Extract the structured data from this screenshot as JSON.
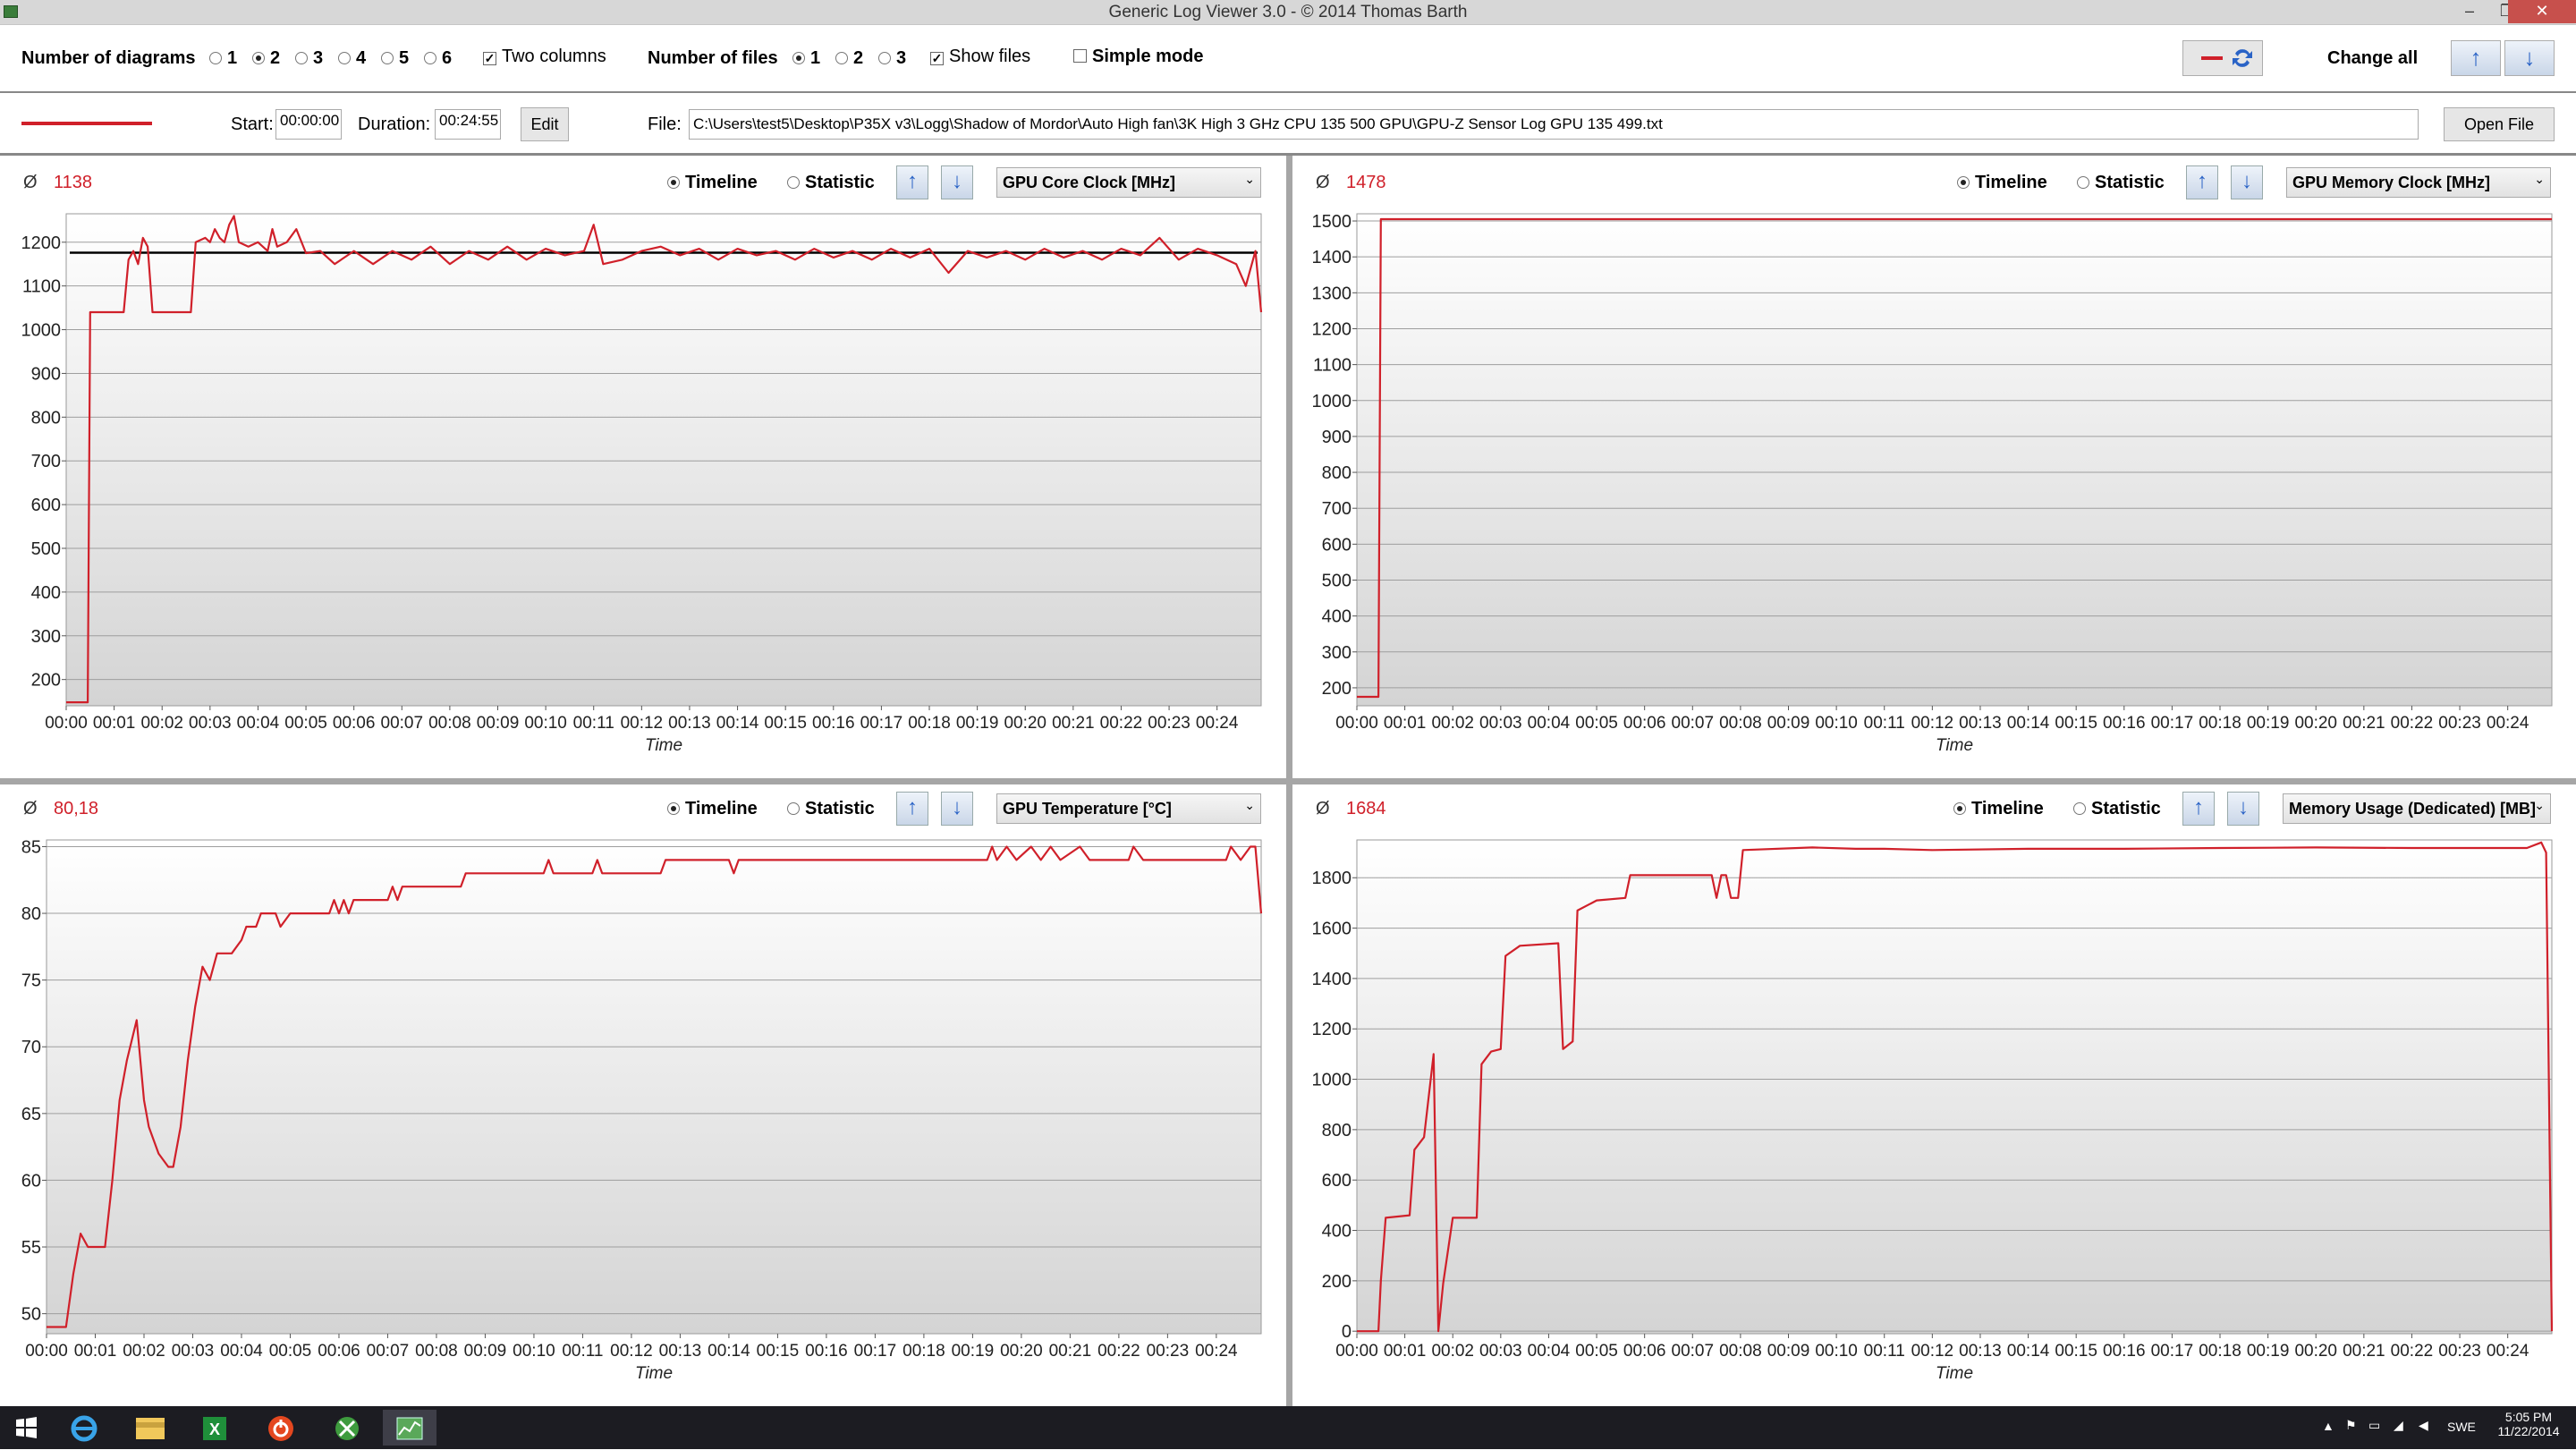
{
  "window": {
    "title": "Generic Log Viewer 3.0 - © 2014 Thomas Barth"
  },
  "toolbar": {
    "num_diagrams_label": "Number of diagrams",
    "diagram_options": [
      "1",
      "2",
      "3",
      "4",
      "5",
      "6"
    ],
    "diagram_selected": "2",
    "two_columns_label": "Two columns",
    "two_columns_checked": true,
    "num_files_label": "Number of files",
    "file_options": [
      "1",
      "2",
      "3"
    ],
    "file_selected": "1",
    "show_files_label": "Show files",
    "show_files_checked": true,
    "simple_mode_label": "Simple mode",
    "simple_mode_checked": false,
    "change_all_label": "Change all"
  },
  "file_row": {
    "line_color": "#d0202a",
    "start_label": "Start:",
    "start_value": "00:00:00",
    "duration_label": "Duration:",
    "duration_value": "00:24:55",
    "edit_label": "Edit",
    "file_label": "File:",
    "file_path": "C:\\Users\\test5\\Desktop\\P35X v3\\Logg\\Shadow of Mordor\\Auto High fan\\3K High 3 GHz CPU 135 500 GPU\\GPU-Z Sensor Log GPU 135 499.txt",
    "open_file_label": "Open File"
  },
  "common": {
    "avg_symbol": "Ø",
    "timeline_label": "Timeline",
    "statistic_label": "Statistic",
    "xlabel": "Time",
    "x_ticks": [
      "00:00",
      "00:01",
      "00:02",
      "00:03",
      "00:04",
      "00:05",
      "00:06",
      "00:07",
      "00:08",
      "00:09",
      "00:10",
      "00:11",
      "00:12",
      "00:13",
      "00:14",
      "00:15",
      "00:16",
      "00:17",
      "00:18",
      "00:19",
      "00:20",
      "00:21",
      "00:22",
      "00:23",
      "00:24"
    ]
  },
  "panels": [
    {
      "avg": "1138",
      "sensor": "GPU Core Clock [MHz]"
    },
    {
      "avg": "1478",
      "sensor": "GPU Memory Clock [MHz]"
    },
    {
      "avg": "80,18",
      "sensor": "GPU Temperature [°C]"
    },
    {
      "avg": "1684",
      "sensor": "Memory Usage (Dedicated) [MB]"
    }
  ],
  "chart_data": [
    {
      "type": "line",
      "title": "",
      "xlabel": "Time",
      "ylabel": "",
      "x_unit": "minutes",
      "xlim": [
        0,
        24.92
      ],
      "ylim": [
        140,
        1265
      ],
      "y_ticks": [
        200,
        300,
        400,
        500,
        600,
        700,
        800,
        900,
        1000,
        1100,
        1200
      ],
      "reference_line": 1176,
      "series": [
        {
          "color": "#d0202a",
          "points": [
            [
              0,
              148
            ],
            [
              0.45,
              148
            ],
            [
              0.5,
              1040
            ],
            [
              1.2,
              1040
            ],
            [
              1.3,
              1160
            ],
            [
              1.4,
              1180
            ],
            [
              1.5,
              1150
            ],
            [
              1.6,
              1210
            ],
            [
              1.7,
              1190
            ],
            [
              1.8,
              1040
            ],
            [
              2.6,
              1040
            ],
            [
              2.7,
              1200
            ],
            [
              2.9,
              1210
            ],
            [
              3.0,
              1200
            ],
            [
              3.1,
              1230
            ],
            [
              3.2,
              1210
            ],
            [
              3.3,
              1200
            ],
            [
              3.4,
              1240
            ],
            [
              3.5,
              1260
            ],
            [
              3.6,
              1200
            ],
            [
              3.8,
              1190
            ],
            [
              4.0,
              1200
            ],
            [
              4.2,
              1180
            ],
            [
              4.3,
              1230
            ],
            [
              4.4,
              1190
            ],
            [
              4.6,
              1200
            ],
            [
              4.8,
              1230
            ],
            [
              5.0,
              1175
            ],
            [
              5.3,
              1180
            ],
            [
              5.6,
              1150
            ],
            [
              6.0,
              1180
            ],
            [
              6.4,
              1150
            ],
            [
              6.8,
              1180
            ],
            [
              7.2,
              1160
            ],
            [
              7.6,
              1190
            ],
            [
              8.0,
              1150
            ],
            [
              8.4,
              1180
            ],
            [
              8.8,
              1160
            ],
            [
              9.2,
              1190
            ],
            [
              9.6,
              1160
            ],
            [
              10.0,
              1185
            ],
            [
              10.4,
              1170
            ],
            [
              10.8,
              1180
            ],
            [
              11.0,
              1240
            ],
            [
              11.2,
              1150
            ],
            [
              11.6,
              1160
            ],
            [
              12.0,
              1180
            ],
            [
              12.4,
              1190
            ],
            [
              12.8,
              1170
            ],
            [
              13.2,
              1185
            ],
            [
              13.6,
              1160
            ],
            [
              14.0,
              1185
            ],
            [
              14.4,
              1170
            ],
            [
              14.8,
              1180
            ],
            [
              15.2,
              1160
            ],
            [
              15.6,
              1185
            ],
            [
              16.0,
              1165
            ],
            [
              16.4,
              1180
            ],
            [
              16.8,
              1160
            ],
            [
              17.2,
              1185
            ],
            [
              17.6,
              1165
            ],
            [
              18.0,
              1185
            ],
            [
              18.4,
              1130
            ],
            [
              18.8,
              1180
            ],
            [
              19.2,
              1165
            ],
            [
              19.6,
              1180
            ],
            [
              20.0,
              1160
            ],
            [
              20.4,
              1185
            ],
            [
              20.8,
              1165
            ],
            [
              21.2,
              1180
            ],
            [
              21.6,
              1160
            ],
            [
              22.0,
              1185
            ],
            [
              22.4,
              1170
            ],
            [
              22.8,
              1210
            ],
            [
              23.2,
              1160
            ],
            [
              23.6,
              1185
            ],
            [
              24.0,
              1170
            ],
            [
              24.4,
              1150
            ],
            [
              24.6,
              1100
            ],
            [
              24.8,
              1180
            ],
            [
              24.92,
              1040
            ]
          ]
        }
      ]
    },
    {
      "type": "line",
      "title": "",
      "xlabel": "Time",
      "ylabel": "",
      "x_unit": "minutes",
      "xlim": [
        0,
        24.92
      ],
      "ylim": [
        150,
        1520
      ],
      "y_ticks": [
        200,
        300,
        400,
        500,
        600,
        700,
        800,
        900,
        1000,
        1100,
        1200,
        1300,
        1400,
        1500
      ],
      "series": [
        {
          "color": "#d0202a",
          "points": [
            [
              0,
              175
            ],
            [
              0.45,
              175
            ],
            [
              0.5,
              1505
            ],
            [
              24.92,
              1505
            ]
          ]
        }
      ]
    },
    {
      "type": "line",
      "title": "",
      "xlabel": "Time",
      "ylabel": "",
      "x_unit": "minutes",
      "xlim": [
        0,
        24.92
      ],
      "ylim": [
        48.5,
        85.5
      ],
      "y_ticks": [
        50,
        55,
        60,
        65,
        70,
        75,
        80,
        85
      ],
      "series": [
        {
          "color": "#d0202a",
          "points": [
            [
              0,
              49
            ],
            [
              0.4,
              49
            ],
            [
              0.55,
              53
            ],
            [
              0.7,
              56
            ],
            [
              0.85,
              55
            ],
            [
              1.2,
              55
            ],
            [
              1.35,
              60
            ],
            [
              1.5,
              66
            ],
            [
              1.65,
              69
            ],
            [
              1.85,
              72
            ],
            [
              2.0,
              66
            ],
            [
              2.1,
              64
            ],
            [
              2.3,
              62
            ],
            [
              2.5,
              61
            ],
            [
              2.6,
              61
            ],
            [
              2.75,
              64
            ],
            [
              2.9,
              69
            ],
            [
              3.05,
              73
            ],
            [
              3.2,
              76
            ],
            [
              3.35,
              75
            ],
            [
              3.5,
              77
            ],
            [
              3.8,
              77
            ],
            [
              4.0,
              78
            ],
            [
              4.1,
              79
            ],
            [
              4.3,
              79
            ],
            [
              4.4,
              80
            ],
            [
              4.7,
              80
            ],
            [
              4.8,
              79
            ],
            [
              5.0,
              80
            ],
            [
              5.8,
              80
            ],
            [
              5.9,
              81
            ],
            [
              6.0,
              80
            ],
            [
              6.1,
              81
            ],
            [
              6.2,
              80
            ],
            [
              6.3,
              81
            ],
            [
              7.0,
              81
            ],
            [
              7.1,
              82
            ],
            [
              7.2,
              81
            ],
            [
              7.3,
              82
            ],
            [
              8.5,
              82
            ],
            [
              8.6,
              83
            ],
            [
              10.2,
              83
            ],
            [
              10.3,
              84
            ],
            [
              10.4,
              83
            ],
            [
              11.2,
              83
            ],
            [
              11.3,
              84
            ],
            [
              11.4,
              83
            ],
            [
              12.6,
              83
            ],
            [
              12.7,
              84
            ],
            [
              14.0,
              84
            ],
            [
              14.1,
              83
            ],
            [
              14.2,
              84
            ],
            [
              19.3,
              84
            ],
            [
              19.4,
              85
            ],
            [
              19.5,
              84
            ],
            [
              19.7,
              85
            ],
            [
              19.9,
              84
            ],
            [
              20.2,
              85
            ],
            [
              20.4,
              84
            ],
            [
              20.6,
              85
            ],
            [
              20.8,
              84
            ],
            [
              21.2,
              85
            ],
            [
              21.4,
              84
            ],
            [
              22.2,
              84
            ],
            [
              22.3,
              85
            ],
            [
              22.5,
              84
            ],
            [
              24.2,
              84
            ],
            [
              24.3,
              85
            ],
            [
              24.5,
              84
            ],
            [
              24.7,
              85
            ],
            [
              24.8,
              85
            ],
            [
              24.92,
              80
            ]
          ]
        }
      ]
    },
    {
      "type": "line",
      "title": "",
      "xlabel": "Time",
      "ylabel": "",
      "x_unit": "minutes",
      "xlim": [
        0,
        24.92
      ],
      "ylim": [
        -10,
        1950
      ],
      "y_ticks": [
        0,
        200,
        400,
        600,
        800,
        1000,
        1200,
        1400,
        1600,
        1800
      ],
      "series": [
        {
          "color": "#d0202a",
          "points": [
            [
              0,
              0
            ],
            [
              0.45,
              0
            ],
            [
              0.5,
              200
            ],
            [
              0.6,
              450
            ],
            [
              1.1,
              460
            ],
            [
              1.2,
              720
            ],
            [
              1.4,
              770
            ],
            [
              1.6,
              1100
            ],
            [
              1.7,
              0
            ],
            [
              1.8,
              190
            ],
            [
              2.0,
              450
            ],
            [
              2.5,
              450
            ],
            [
              2.6,
              1060
            ],
            [
              2.8,
              1110
            ],
            [
              3.0,
              1120
            ],
            [
              3.1,
              1490
            ],
            [
              3.4,
              1530
            ],
            [
              4.2,
              1540
            ],
            [
              4.3,
              1120
            ],
            [
              4.5,
              1150
            ],
            [
              4.6,
              1670
            ],
            [
              5.0,
              1710
            ],
            [
              5.6,
              1720
            ],
            [
              5.7,
              1810
            ],
            [
              7.4,
              1810
            ],
            [
              7.5,
              1720
            ],
            [
              7.6,
              1810
            ],
            [
              7.7,
              1810
            ],
            [
              7.8,
              1720
            ],
            [
              7.95,
              1720
            ],
            [
              8.05,
              1910
            ],
            [
              9.5,
              1920
            ],
            [
              10.4,
              1915
            ],
            [
              11.0,
              1915
            ],
            [
              12.0,
              1910
            ],
            [
              14.0,
              1915
            ],
            [
              16.0,
              1915
            ],
            [
              18.0,
              1918
            ],
            [
              20.0,
              1920
            ],
            [
              22.0,
              1918
            ],
            [
              24.4,
              1918
            ],
            [
              24.7,
              1940
            ],
            [
              24.8,
              1900
            ],
            [
              24.92,
              0
            ]
          ]
        }
      ]
    }
  ],
  "taskbar": {
    "apps": [
      "windows-logo",
      "internet-explorer",
      "file-explorer",
      "excel",
      "power-app",
      "xbox-app",
      "log-viewer-app"
    ],
    "language": "SWE",
    "time": "5:05 PM",
    "date": "11/22/2014"
  }
}
